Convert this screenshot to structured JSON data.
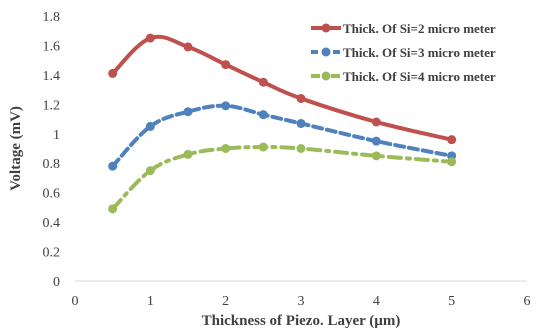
{
  "chart_data": {
    "type": "line",
    "title": "",
    "xlabel": "Thickness of Piezo. Layer (µm)",
    "ylabel": "Voltage (mV)",
    "xlim": [
      0,
      6
    ],
    "ylim": [
      0,
      1.8
    ],
    "x_ticks": [
      "0",
      "1",
      "2",
      "3",
      "4",
      "5",
      "6"
    ],
    "y_ticks": [
      "0",
      "0.2",
      "0.4",
      "0.6",
      "0.8",
      "1",
      "1.2",
      "1.4",
      "1.6",
      "1.8"
    ],
    "grid": false,
    "legend_position": "top-right",
    "series": [
      {
        "name": "Thick. Of Si=2 micro meter",
        "color": "#C0504D",
        "line_style": "solid",
        "marker_x": [
          0.5,
          1.0,
          1.5,
          2.0,
          2.5,
          3.0,
          4.0,
          5.0
        ],
        "values": [
          1.41,
          1.65,
          1.59,
          1.47,
          1.35,
          1.24,
          1.08,
          0.96
        ]
      },
      {
        "name": "Thick. Of Si=3 micro meter",
        "color": "#4F81BD",
        "line_style": "dashed",
        "marker_x": [
          0.5,
          1.0,
          1.5,
          2.0,
          2.5,
          3.0,
          4.0,
          5.0
        ],
        "values": [
          0.78,
          1.05,
          1.15,
          1.19,
          1.13,
          1.07,
          0.95,
          0.85
        ]
      },
      {
        "name": "Thick. Of Si=4 micro meter",
        "color": "#9BBB59",
        "line_style": "dash-dot",
        "marker_x": [
          0.5,
          1.0,
          1.5,
          2.0,
          2.5,
          3.0,
          4.0,
          5.0
        ],
        "values": [
          0.49,
          0.75,
          0.86,
          0.9,
          0.91,
          0.9,
          0.85,
          0.81
        ]
      }
    ]
  }
}
